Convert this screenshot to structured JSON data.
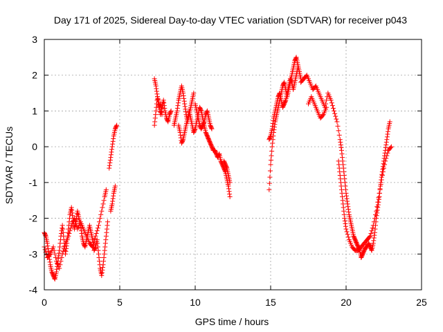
{
  "chart_data": {
    "type": "scatter",
    "title": "Day 171 of 2025, Sidereal Day-to-day VTEC variation (SDTVAR) for receiver p043",
    "xlabel": "GPS time / hours",
    "ylabel": "SDTVAR / TECUs",
    "xlim": [
      0,
      25
    ],
    "ylim": [
      -4,
      3
    ],
    "xticks": [
      "0",
      "5",
      "10",
      "15",
      "20",
      "25"
    ],
    "yticks": [
      "-4",
      "-3",
      "-2",
      "-1",
      "0",
      "1",
      "2",
      "3"
    ],
    "grid": true,
    "marker": "+",
    "color": "#ff0000",
    "series": [
      {
        "name": "SDTVAR",
        "segments": [
          [
            [
              0.0,
              -2.4
            ],
            [
              0.1,
              -2.5
            ],
            [
              0.2,
              -2.7
            ],
            [
              0.3,
              -3.0
            ],
            [
              0.4,
              -3.3
            ],
            [
              0.5,
              -3.5
            ],
            [
              0.6,
              -3.6
            ],
            [
              0.7,
              -3.7
            ],
            [
              0.8,
              -3.5
            ],
            [
              0.9,
              -3.2
            ],
            [
              1.0,
              -2.9
            ],
            [
              1.1,
              -2.5
            ],
            [
              1.2,
              -2.2
            ],
            [
              1.3,
              -2.6
            ],
            [
              1.4,
              -3.0
            ],
            [
              1.5,
              -2.7
            ],
            [
              1.6,
              -2.3
            ],
            [
              1.7,
              -1.9
            ],
            [
              1.8,
              -1.7
            ],
            [
              1.9,
              -2.0
            ],
            [
              2.0,
              -2.3
            ],
            [
              2.1,
              -2.1
            ],
            [
              2.2,
              -1.8
            ],
            [
              2.3,
              -2.0
            ],
            [
              2.4,
              -2.2
            ],
            [
              2.5,
              -2.5
            ],
            [
              2.6,
              -2.7
            ],
            [
              2.7,
              -2.8
            ],
            [
              2.8,
              -2.6
            ],
            [
              2.9,
              -2.4
            ],
            [
              3.0,
              -2.2
            ],
            [
              3.1,
              -2.4
            ],
            [
              3.2,
              -2.6
            ],
            [
              3.3,
              -2.9
            ],
            [
              3.4,
              -2.8
            ],
            [
              3.5,
              -2.6
            ],
            [
              3.6,
              -3.0
            ],
            [
              3.7,
              -3.4
            ],
            [
              3.8,
              -3.6
            ],
            [
              3.9,
              -3.3
            ],
            [
              4.0,
              -2.9
            ],
            [
              4.1,
              -2.5
            ],
            [
              4.2,
              -2.1
            ]
          ],
          [
            [
              0.0,
              -2.8
            ],
            [
              0.2,
              -3.1
            ],
            [
              0.4,
              -3.0
            ],
            [
              0.6,
              -2.8
            ],
            [
              0.8,
              -3.2
            ],
            [
              1.0,
              -3.4
            ],
            [
              1.2,
              -3.0
            ],
            [
              1.4,
              -2.7
            ],
            [
              1.6,
              -2.5
            ],
            [
              1.8,
              -2.2
            ],
            [
              2.0,
              -2.0
            ],
            [
              2.2,
              -2.3
            ],
            [
              2.4,
              -2.1
            ],
            [
              2.6,
              -2.3
            ],
            [
              2.8,
              -2.5
            ],
            [
              3.0,
              -2.7
            ],
            [
              3.2,
              -2.8
            ],
            [
              3.4,
              -2.5
            ],
            [
              3.6,
              -2.2
            ],
            [
              3.8,
              -1.8
            ],
            [
              4.0,
              -1.4
            ],
            [
              4.1,
              -1.2
            ]
          ],
          [
            [
              4.4,
              -1.8
            ],
            [
              4.5,
              -1.6
            ],
            [
              4.6,
              -1.3
            ],
            [
              4.7,
              -1.1
            ]
          ],
          [
            [
              4.3,
              -0.6
            ],
            [
              4.4,
              -0.3
            ],
            [
              4.5,
              0.0
            ],
            [
              4.6,
              0.3
            ],
            [
              4.7,
              0.5
            ],
            [
              4.8,
              0.6
            ]
          ],
          [
            [
              7.3,
              0.6
            ],
            [
              7.4,
              1.0
            ],
            [
              7.5,
              1.4
            ],
            [
              7.6,
              1.2
            ],
            [
              7.7,
              0.9
            ],
            [
              7.8,
              1.1
            ],
            [
              7.9,
              1.3
            ],
            [
              8.0,
              1.0
            ],
            [
              8.1,
              0.8
            ],
            [
              8.2,
              0.7
            ],
            [
              8.3,
              0.9
            ],
            [
              8.4,
              1.0
            ]
          ],
          [
            [
              7.3,
              1.9
            ],
            [
              7.4,
              1.7
            ],
            [
              7.5,
              1.4
            ],
            [
              7.6,
              1.1
            ],
            [
              7.7,
              1.2
            ],
            [
              7.8,
              0.9
            ]
          ],
          [
            [
              8.6,
              0.6
            ],
            [
              8.7,
              0.8
            ],
            [
              8.8,
              1.0
            ],
            [
              8.9,
              1.3
            ],
            [
              9.0,
              1.5
            ],
            [
              9.1,
              1.7
            ],
            [
              9.2,
              1.5
            ],
            [
              9.3,
              1.2
            ],
            [
              9.4,
              0.9
            ],
            [
              9.5,
              0.7
            ],
            [
              9.6,
              0.9
            ],
            [
              9.7,
              1.1
            ],
            [
              9.8,
              1.3
            ],
            [
              9.9,
              1.5
            ]
          ],
          [
            [
              8.9,
              0.6
            ],
            [
              9.0,
              0.4
            ],
            [
              9.1,
              0.1
            ],
            [
              9.2,
              0.2
            ],
            [
              9.3,
              0.4
            ],
            [
              9.4,
              0.6
            ],
            [
              9.5,
              0.8
            ],
            [
              9.6,
              1.0
            ],
            [
              9.7,
              0.8
            ],
            [
              9.8,
              0.6
            ],
            [
              9.9,
              0.4
            ],
            [
              10.0,
              0.5
            ],
            [
              10.1,
              0.7
            ],
            [
              10.2,
              0.9
            ],
            [
              10.3,
              1.1
            ],
            [
              10.4,
              1.0
            ],
            [
              10.5,
              0.8
            ],
            [
              10.6,
              0.6
            ],
            [
              10.7,
              0.4
            ],
            [
              10.8,
              0.3
            ],
            [
              10.9,
              0.2
            ],
            [
              11.0,
              0.1
            ],
            [
              11.1,
              0.0
            ],
            [
              11.2,
              -0.1
            ],
            [
              11.3,
              -0.1
            ],
            [
              11.4,
              -0.2
            ],
            [
              11.5,
              -0.3
            ],
            [
              11.6,
              -0.2
            ],
            [
              11.7,
              -0.4
            ],
            [
              11.8,
              -0.5
            ],
            [
              11.9,
              -0.6
            ],
            [
              12.0,
              -0.7
            ],
            [
              12.1,
              -0.9
            ],
            [
              12.2,
              -1.1
            ],
            [
              12.3,
              -1.4
            ]
          ],
          [
            [
              10.0,
              1.2
            ],
            [
              10.1,
              1.0
            ],
            [
              10.2,
              0.8
            ],
            [
              10.3,
              0.6
            ],
            [
              10.4,
              0.5
            ],
            [
              10.5,
              0.6
            ],
            [
              10.6,
              0.7
            ],
            [
              10.7,
              0.9
            ],
            [
              10.8,
              1.0
            ],
            [
              10.9,
              0.8
            ],
            [
              11.0,
              0.6
            ],
            [
              11.1,
              0.5
            ]
          ],
          [
            [
              11.9,
              -0.4
            ],
            [
              12.0,
              -0.5
            ],
            [
              12.1,
              -0.6
            ],
            [
              12.2,
              -0.8
            ],
            [
              12.3,
              -1.0
            ]
          ],
          [
            [
              14.9,
              -1.2
            ],
            [
              15.0,
              -0.5
            ],
            [
              15.1,
              0.0
            ],
            [
              15.2,
              0.4
            ],
            [
              15.3,
              0.7
            ],
            [
              15.4,
              0.9
            ],
            [
              15.5,
              1.1
            ],
            [
              15.6,
              1.3
            ],
            [
              15.7,
              1.5
            ],
            [
              15.8,
              1.7
            ],
            [
              15.9,
              1.8
            ],
            [
              16.0,
              1.6
            ],
            [
              16.1,
              1.4
            ],
            [
              16.2,
              1.6
            ],
            [
              16.3,
              1.8
            ],
            [
              16.4,
              2.0
            ],
            [
              16.5,
              2.2
            ],
            [
              16.6,
              2.4
            ],
            [
              16.7,
              2.5
            ],
            [
              16.8,
              2.3
            ],
            [
              16.9,
              2.1
            ],
            [
              17.0,
              1.9
            ]
          ],
          [
            [
              14.9,
              0.2
            ],
            [
              15.0,
              0.3
            ],
            [
              15.1,
              0.5
            ],
            [
              15.2,
              0.8
            ],
            [
              15.3,
              1.0
            ],
            [
              15.4,
              1.2
            ],
            [
              15.5,
              1.4
            ],
            [
              15.6,
              1.5
            ],
            [
              15.7,
              1.3
            ],
            [
              15.8,
              1.1
            ],
            [
              15.9,
              1.2
            ],
            [
              16.0,
              1.3
            ],
            [
              16.1,
              1.5
            ],
            [
              16.2,
              1.7
            ],
            [
              16.3,
              1.9
            ],
            [
              16.4,
              1.8
            ],
            [
              16.5,
              1.6
            ],
            [
              16.6,
              1.8
            ],
            [
              16.7,
              2.0
            ],
            [
              16.8,
              2.2
            ]
          ],
          [
            [
              17.0,
              1.8
            ],
            [
              17.2,
              1.9
            ],
            [
              17.4,
              2.0
            ],
            [
              17.6,
              1.8
            ],
            [
              17.8,
              1.6
            ],
            [
              18.0,
              1.7
            ],
            [
              18.2,
              1.5
            ],
            [
              18.4,
              1.3
            ],
            [
              18.6,
              1.1
            ],
            [
              18.8,
              1.5
            ],
            [
              19.0,
              1.3
            ],
            [
              19.2,
              1.0
            ],
            [
              19.4,
              0.7
            ],
            [
              19.6,
              0.2
            ],
            [
              19.7,
              -0.1
            ],
            [
              19.8,
              -0.5
            ],
            [
              19.9,
              -0.9
            ],
            [
              20.0,
              -1.3
            ],
            [
              20.1,
              -1.6
            ],
            [
              20.2,
              -1.9
            ],
            [
              20.3,
              -2.1
            ],
            [
              20.4,
              -2.3
            ],
            [
              20.5,
              -2.5
            ],
            [
              20.6,
              -2.6
            ],
            [
              20.7,
              -2.7
            ],
            [
              20.8,
              -2.8
            ],
            [
              20.9,
              -2.9
            ],
            [
              21.0,
              -3.1
            ],
            [
              21.1,
              -3.0
            ],
            [
              21.2,
              -2.9
            ],
            [
              21.3,
              -2.8
            ],
            [
              21.4,
              -2.8
            ],
            [
              21.5,
              -2.7
            ],
            [
              21.6,
              -2.8
            ],
            [
              21.7,
              -2.9
            ],
            [
              21.8,
              -2.7
            ],
            [
              21.9,
              -2.4
            ],
            [
              22.0,
              -2.0
            ],
            [
              22.1,
              -1.7
            ],
            [
              22.2,
              -1.4
            ],
            [
              22.3,
              -1.0
            ],
            [
              22.4,
              -0.7
            ],
            [
              22.5,
              -0.4
            ],
            [
              22.6,
              -0.1
            ],
            [
              22.7,
              0.2
            ],
            [
              22.8,
              0.5
            ],
            [
              22.9,
              0.7
            ]
          ],
          [
            [
              17.5,
              1.2
            ],
            [
              17.7,
              1.4
            ],
            [
              17.9,
              1.2
            ],
            [
              18.1,
              1.0
            ],
            [
              18.3,
              0.8
            ],
            [
              18.5,
              0.9
            ],
            [
              18.7,
              1.1
            ]
          ],
          [
            [
              19.5,
              -0.4
            ],
            [
              19.6,
              -0.8
            ],
            [
              19.7,
              -1.2
            ],
            [
              19.8,
              -1.6
            ],
            [
              19.9,
              -2.0
            ],
            [
              20.0,
              -2.3
            ],
            [
              20.2,
              -2.6
            ],
            [
              20.4,
              -2.8
            ],
            [
              20.6,
              -2.9
            ],
            [
              20.8,
              -2.9
            ],
            [
              21.0,
              -2.8
            ],
            [
              21.2,
              -2.7
            ],
            [
              21.4,
              -2.6
            ],
            [
              21.6,
              -2.5
            ],
            [
              21.8,
              -2.2
            ],
            [
              22.0,
              -1.8
            ],
            [
              22.2,
              -1.3
            ],
            [
              22.4,
              -0.8
            ],
            [
              22.6,
              -0.4
            ],
            [
              22.8,
              -0.1
            ],
            [
              23.0,
              0.0
            ]
          ]
        ]
      }
    ]
  }
}
